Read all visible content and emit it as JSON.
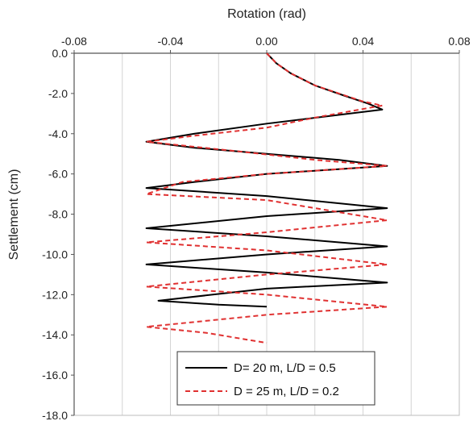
{
  "chart_data": {
    "type": "line",
    "xlabel": "Rotation (rad)",
    "ylabel": "Settlement (cm)",
    "xlim": [
      -0.08,
      0.08
    ],
    "ylim": [
      -18.0,
      0.0
    ],
    "x_ticks": [
      "-0.08",
      "-0.04",
      "0.00",
      "0.04",
      "0.08"
    ],
    "y_ticks": [
      "0.0",
      "-2.0",
      "-4.0",
      "-6.0",
      "-8.0",
      "-10.0",
      "-12.0",
      "-14.0",
      "-16.0",
      "-18.0"
    ],
    "x_axis_position": "top",
    "grid": "vertical",
    "legend_position": "bottom-right",
    "series": [
      {
        "name": "D= 20 m, L/D = 0.5",
        "color": "#000000",
        "style": "solid",
        "points": [
          [
            0.0,
            0.0
          ],
          [
            0.004,
            -0.5
          ],
          [
            0.01,
            -1.0
          ],
          [
            0.02,
            -1.6
          ],
          [
            0.032,
            -2.1
          ],
          [
            0.042,
            -2.5
          ],
          [
            0.048,
            -2.8
          ],
          [
            0.0,
            -3.5
          ],
          [
            -0.03,
            -4.0
          ],
          [
            -0.05,
            -4.4
          ],
          [
            -0.03,
            -4.7
          ],
          [
            0.0,
            -5.0
          ],
          [
            0.03,
            -5.3
          ],
          [
            0.05,
            -5.6
          ],
          [
            0.0,
            -6.0
          ],
          [
            -0.03,
            -6.4
          ],
          [
            -0.05,
            -6.7
          ],
          [
            0.0,
            -7.1
          ],
          [
            0.05,
            -7.7
          ],
          [
            0.0,
            -8.1
          ],
          [
            -0.05,
            -8.7
          ],
          [
            0.0,
            -9.1
          ],
          [
            0.05,
            -9.6
          ],
          [
            0.0,
            -10.0
          ],
          [
            -0.05,
            -10.5
          ],
          [
            0.0,
            -10.9
          ],
          [
            0.05,
            -11.4
          ],
          [
            0.0,
            -11.7
          ],
          [
            -0.045,
            -12.3
          ],
          [
            -0.02,
            -12.5
          ],
          [
            0.0,
            -12.6
          ]
        ]
      },
      {
        "name": "D = 25 m, L/D = 0.2",
        "color": "#e03030",
        "style": "dashed",
        "points": [
          [
            0.0,
            0.0
          ],
          [
            0.004,
            -0.5
          ],
          [
            0.01,
            -1.0
          ],
          [
            0.02,
            -1.6
          ],
          [
            0.03,
            -2.0
          ],
          [
            0.04,
            -2.4
          ],
          [
            0.048,
            -2.6
          ],
          [
            0.02,
            -3.2
          ],
          [
            0.0,
            -3.7
          ],
          [
            -0.03,
            -4.1
          ],
          [
            -0.05,
            -4.4
          ],
          [
            -0.01,
            -4.9
          ],
          [
            0.02,
            -5.3
          ],
          [
            0.05,
            -5.6
          ],
          [
            0.0,
            -6.0
          ],
          [
            -0.035,
            -6.4
          ],
          [
            -0.05,
            -7.0
          ],
          [
            0.0,
            -7.3
          ],
          [
            0.05,
            -8.3
          ],
          [
            0.0,
            -8.9
          ],
          [
            -0.05,
            -9.4
          ],
          [
            0.0,
            -9.8
          ],
          [
            0.05,
            -10.5
          ],
          [
            0.0,
            -11.0
          ],
          [
            -0.05,
            -11.6
          ],
          [
            0.0,
            -12.0
          ],
          [
            0.05,
            -12.6
          ],
          [
            0.0,
            -13.0
          ],
          [
            -0.05,
            -13.6
          ],
          [
            -0.025,
            -13.9
          ],
          [
            0.0,
            -14.4
          ]
        ]
      }
    ]
  }
}
